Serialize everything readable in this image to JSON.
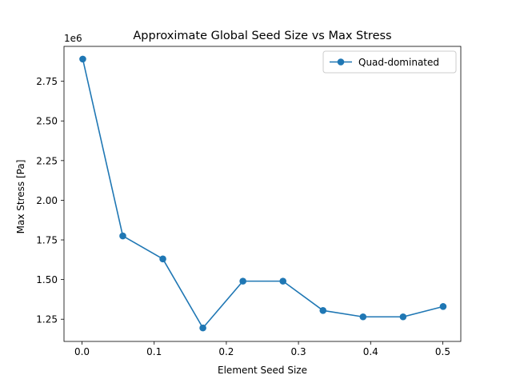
{
  "chart_data": {
    "type": "line",
    "title": "Approximate Global Seed Size vs Max Stress",
    "xlabel": "Element Seed Size",
    "ylabel": "Max Stress [Pa]",
    "y_offset_label": "1e6",
    "y_multiplier": 1000000,
    "xlim": [
      -0.025,
      0.525
    ],
    "ylim": [
      1.11,
      2.97
    ],
    "x_ticks": [
      0.0,
      0.1,
      0.2,
      0.3,
      0.4,
      0.5
    ],
    "x_tick_labels": [
      "0.0",
      "0.1",
      "0.2",
      "0.3",
      "0.4",
      "0.5"
    ],
    "y_ticks": [
      1.25,
      1.5,
      1.75,
      2.0,
      2.25,
      2.5,
      2.75
    ],
    "y_tick_labels": [
      "1.25",
      "1.50",
      "1.75",
      "2.00",
      "2.25",
      "2.50",
      "2.75"
    ],
    "grid": false,
    "legend_position": "top-right",
    "series": [
      {
        "name": "Quad-dominated",
        "color": "#1f77b4",
        "marker": "circle",
        "x": [
          0.001,
          0.0565,
          0.112,
          0.1675,
          0.223,
          0.2785,
          0.334,
          0.3895,
          0.445,
          0.5005
        ],
        "y": [
          2.89,
          1.775,
          1.63,
          1.195,
          1.49,
          1.49,
          1.305,
          1.265,
          1.265,
          1.33
        ]
      }
    ]
  }
}
